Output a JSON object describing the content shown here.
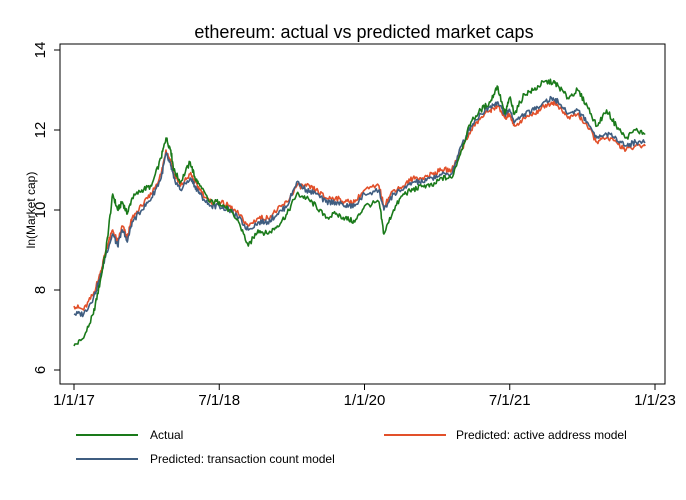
{
  "chart_data": {
    "type": "line",
    "title": "ethereum: actual vs predicted market caps",
    "xlabel": "",
    "ylabel": "ln(Market cap)",
    "ylim": [
      6,
      14
    ],
    "yticks": [
      6,
      8,
      10,
      12,
      14
    ],
    "ytick_labels": [
      "6",
      "8",
      "10",
      "12",
      "14"
    ],
    "xlim": [
      2017.0,
      2022.95
    ],
    "xticks": [
      2017.0,
      2018.5,
      2020.0,
      2021.5,
      2023.0
    ],
    "xtick_labels": [
      "1/1/17",
      "7/1/18",
      "1/1/20",
      "7/1/21",
      "1/1/23"
    ],
    "grid": false,
    "legend_position": "bottom",
    "series": [
      {
        "name": "Actual",
        "color": "#1a7a1a",
        "x": [
          2017.0,
          2017.1,
          2017.2,
          2017.27,
          2017.33,
          2017.4,
          2017.45,
          2017.5,
          2017.55,
          2017.6,
          2017.7,
          2017.8,
          2017.9,
          2017.95,
          2018.0,
          2018.03,
          2018.1,
          2018.2,
          2018.25,
          2018.3,
          2018.4,
          2018.5,
          2018.6,
          2018.7,
          2018.8,
          2018.9,
          2019.0,
          2019.1,
          2019.2,
          2019.3,
          2019.4,
          2019.5,
          2019.6,
          2019.7,
          2019.8,
          2019.9,
          2020.0,
          2020.15,
          2020.2,
          2020.3,
          2020.4,
          2020.5,
          2020.6,
          2020.7,
          2020.8,
          2020.9,
          2021.0,
          2021.1,
          2021.2,
          2021.3,
          2021.37,
          2021.45,
          2021.5,
          2021.55,
          2021.65,
          2021.75,
          2021.85,
          2021.95,
          2022.0,
          2022.1,
          2022.2,
          2022.3,
          2022.4,
          2022.5,
          2022.6,
          2022.7,
          2022.8,
          2022.9
        ],
        "y": [
          6.6,
          6.8,
          7.4,
          8.2,
          9.0,
          10.4,
          10.0,
          10.2,
          9.9,
          10.3,
          10.5,
          10.6,
          11.3,
          11.8,
          11.5,
          11.0,
          10.7,
          11.2,
          10.8,
          10.6,
          10.2,
          10.2,
          10.0,
          9.7,
          9.1,
          9.5,
          9.4,
          9.6,
          9.9,
          10.4,
          10.3,
          10.1,
          9.8,
          9.9,
          9.8,
          9.7,
          10.1,
          10.2,
          9.4,
          10.0,
          10.4,
          10.5,
          10.6,
          10.6,
          10.8,
          10.8,
          11.5,
          12.2,
          12.5,
          12.7,
          13.1,
          12.4,
          12.8,
          12.4,
          12.9,
          13.0,
          13.2,
          13.2,
          13.1,
          12.8,
          13.0,
          12.6,
          12.1,
          12.5,
          12.1,
          11.8,
          12.0,
          11.9
        ]
      },
      {
        "name": "Predicted: active address model",
        "color": "#e2502a",
        "x": [
          2017.0,
          2017.1,
          2017.2,
          2017.27,
          2017.33,
          2017.4,
          2017.45,
          2017.5,
          2017.55,
          2017.6,
          2017.7,
          2017.8,
          2017.9,
          2017.95,
          2018.0,
          2018.03,
          2018.1,
          2018.2,
          2018.25,
          2018.3,
          2018.4,
          2018.5,
          2018.6,
          2018.7,
          2018.8,
          2018.9,
          2019.0,
          2019.1,
          2019.2,
          2019.3,
          2019.4,
          2019.5,
          2019.6,
          2019.7,
          2019.8,
          2019.9,
          2020.0,
          2020.15,
          2020.2,
          2020.3,
          2020.4,
          2020.5,
          2020.6,
          2020.7,
          2020.8,
          2020.9,
          2021.0,
          2021.1,
          2021.2,
          2021.3,
          2021.37,
          2021.45,
          2021.5,
          2021.55,
          2021.65,
          2021.75,
          2021.85,
          2021.95,
          2022.0,
          2022.1,
          2022.2,
          2022.3,
          2022.4,
          2022.5,
          2022.6,
          2022.7,
          2022.8,
          2022.9
        ],
        "y": [
          7.6,
          7.5,
          7.9,
          8.4,
          9.0,
          9.5,
          9.2,
          9.6,
          9.3,
          9.8,
          10.1,
          10.4,
          10.9,
          11.5,
          11.2,
          10.9,
          10.6,
          10.9,
          10.7,
          10.5,
          10.2,
          10.2,
          10.1,
          9.9,
          9.6,
          9.8,
          9.8,
          10.0,
          10.2,
          10.6,
          10.6,
          10.5,
          10.3,
          10.3,
          10.2,
          10.2,
          10.5,
          10.6,
          10.1,
          10.5,
          10.6,
          10.8,
          10.8,
          10.9,
          11.0,
          11.0,
          11.5,
          12.0,
          12.3,
          12.5,
          12.6,
          12.3,
          12.4,
          12.1,
          12.3,
          12.4,
          12.6,
          12.7,
          12.6,
          12.3,
          12.4,
          12.1,
          11.7,
          11.8,
          11.7,
          11.5,
          11.6,
          11.6
        ]
      },
      {
        "name": "Predicted: transaction count model",
        "color": "#3f5d80",
        "x": [
          2017.0,
          2017.1,
          2017.2,
          2017.27,
          2017.33,
          2017.4,
          2017.45,
          2017.5,
          2017.55,
          2017.6,
          2017.7,
          2017.8,
          2017.9,
          2017.95,
          2018.0,
          2018.03,
          2018.1,
          2018.2,
          2018.25,
          2018.3,
          2018.4,
          2018.5,
          2018.6,
          2018.7,
          2018.8,
          2018.9,
          2019.0,
          2019.1,
          2019.2,
          2019.3,
          2019.4,
          2019.5,
          2019.6,
          2019.7,
          2019.8,
          2019.9,
          2020.0,
          2020.15,
          2020.2,
          2020.3,
          2020.4,
          2020.5,
          2020.6,
          2020.7,
          2020.8,
          2020.9,
          2021.0,
          2021.1,
          2021.2,
          2021.3,
          2021.37,
          2021.45,
          2021.5,
          2021.55,
          2021.65,
          2021.75,
          2021.85,
          2021.95,
          2022.0,
          2022.1,
          2022.2,
          2022.3,
          2022.4,
          2022.5,
          2022.6,
          2022.7,
          2022.8,
          2022.9
        ],
        "y": [
          7.4,
          7.4,
          7.8,
          8.3,
          8.9,
          9.4,
          9.1,
          9.5,
          9.2,
          9.7,
          10.0,
          10.3,
          10.8,
          11.4,
          11.1,
          10.8,
          10.5,
          10.8,
          10.6,
          10.4,
          10.1,
          10.1,
          10.0,
          9.8,
          9.5,
          9.7,
          9.7,
          9.9,
          10.1,
          10.7,
          10.5,
          10.4,
          10.2,
          10.2,
          10.1,
          10.1,
          10.4,
          10.5,
          10.0,
          10.4,
          10.5,
          10.7,
          10.7,
          10.8,
          10.9,
          10.9,
          11.6,
          12.1,
          12.4,
          12.6,
          12.7,
          12.4,
          12.5,
          12.2,
          12.4,
          12.5,
          12.7,
          12.8,
          12.7,
          12.4,
          12.5,
          12.2,
          11.8,
          11.9,
          11.8,
          11.6,
          11.7,
          11.7
        ]
      }
    ]
  }
}
